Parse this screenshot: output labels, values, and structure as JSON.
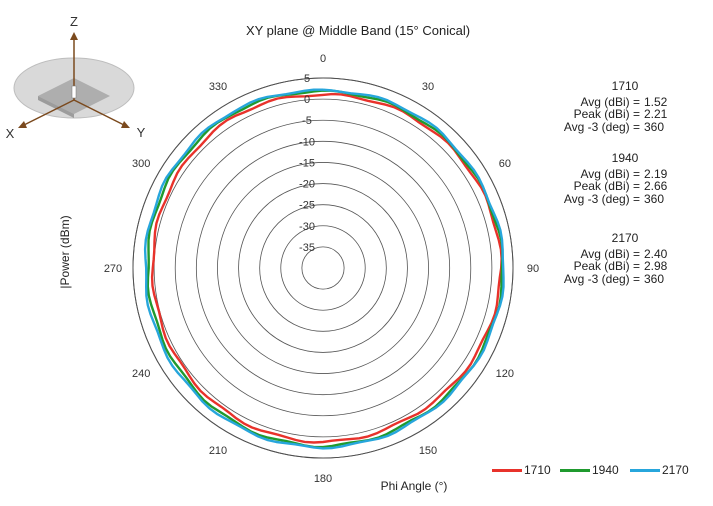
{
  "chart_data": {
    "type": "polar-line",
    "title": "XY plane @ Middle Band (15° Conical)",
    "angle_axis_label": "Phi  Angle (°)",
    "radial_axis_label": "|Power (dBm)",
    "angle_ticks": [
      "0",
      "30",
      "60",
      "90",
      "120",
      "150",
      "180",
      "210",
      "240",
      "270",
      "300",
      "330"
    ],
    "radial_ticks": [
      "5",
      "0",
      "-5",
      "-10",
      "-15",
      "-20",
      "-25",
      "-30",
      "-35"
    ],
    "radial_range": [
      -40,
      5
    ],
    "angle_direction": "clockwise",
    "zero_at": "top",
    "series": [
      {
        "name": "1710",
        "color": "#e8322b",
        "phi": [
          0,
          30,
          60,
          90,
          120,
          150,
          180,
          210,
          240,
          270,
          300,
          330,
          360
        ],
        "values": [
          1.0,
          1.5,
          1.8,
          2.2,
          1.6,
          0.9,
          1.2,
          1.1,
          0.6,
          0.3,
          0.9,
          1.6,
          1.0
        ]
      },
      {
        "name": "1940",
        "color": "#1f9a2e",
        "phi": [
          0,
          30,
          60,
          90,
          120,
          150,
          180,
          210,
          240,
          270,
          300,
          330,
          360
        ],
        "values": [
          1.8,
          2.0,
          2.2,
          2.6,
          2.3,
          1.9,
          2.2,
          2.1,
          1.6,
          1.5,
          2.1,
          2.4,
          1.8
        ]
      },
      {
        "name": "2170",
        "color": "#27a6dc",
        "phi": [
          0,
          30,
          60,
          90,
          120,
          150,
          180,
          210,
          240,
          270,
          300,
          330,
          360
        ],
        "values": [
          2.0,
          2.5,
          2.4,
          2.9,
          2.5,
          2.3,
          2.5,
          2.6,
          2.3,
          2.1,
          2.6,
          2.8,
          2.0
        ]
      }
    ],
    "legend_position": "bottom-right"
  },
  "stats": [
    {
      "freq": "1710",
      "rows": [
        {
          "label": "Avg (dBi) =",
          "value": "1.52"
        },
        {
          "label": "Peak (dBi) =",
          "value": "2.21"
        },
        {
          "label": "Avg -3 (deg) =",
          "value": "360"
        }
      ]
    },
    {
      "freq": "1940",
      "rows": [
        {
          "label": "Avg (dBi) =",
          "value": "2.19"
        },
        {
          "label": "Peak (dBi) =",
          "value": "2.66"
        },
        {
          "label": "Avg -3 (deg) =",
          "value": "360"
        }
      ]
    },
    {
      "freq": "2170",
      "rows": [
        {
          "label": "Avg (dBi) =",
          "value": "2.40"
        },
        {
          "label": "Peak (dBi) =",
          "value": "2.98"
        },
        {
          "label": "Avg -3 (deg) =",
          "value": "360"
        }
      ]
    }
  ],
  "orientation_axes": {
    "z": "Z",
    "x": "X",
    "y": "Y"
  }
}
